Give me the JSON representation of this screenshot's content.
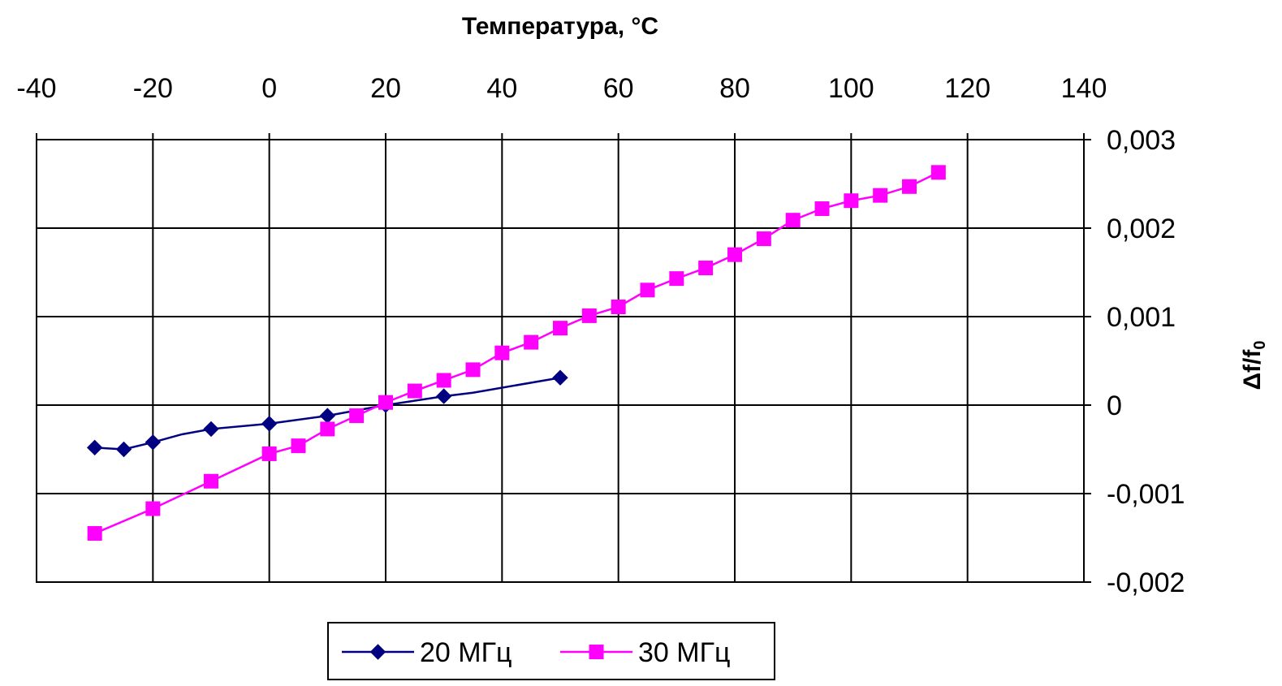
{
  "chart_data": {
    "type": "line",
    "title": "",
    "xlabel": "Температура, °С",
    "ylabel": "Δf/f",
    "ylabel_subscript": "0",
    "x_axis_position": "top",
    "y_axis_position": "right",
    "xlim": [
      -40,
      140
    ],
    "ylim": [
      -0.002,
      0.003
    ],
    "x_ticks": [
      -40,
      -20,
      0,
      20,
      40,
      60,
      80,
      100,
      120,
      140
    ],
    "x_tick_labels": [
      "-40",
      "-20",
      "0",
      "20",
      "40",
      "60",
      "80",
      "100",
      "120",
      "140"
    ],
    "y_ticks": [
      -0.002,
      -0.001,
      0,
      0.001,
      0.002,
      0.003
    ],
    "y_tick_labels": [
      "-0,002",
      "-0,001",
      "0",
      "0,001",
      "0,002",
      "0,003"
    ],
    "grid": true,
    "legend_position": "bottom",
    "series": [
      {
        "name": "20 МГц",
        "color": "#000080",
        "marker": "diamond",
        "x": [
          -30,
          -25,
          -20,
          -15,
          -10,
          0,
          10,
          20,
          30,
          35,
          50
        ],
        "y": [
          -0.00048,
          -0.0005,
          -0.00042,
          -0.00033,
          -0.00027,
          -0.00021,
          -0.00012,
          0.0,
          0.0001,
          0.00014,
          0.00031
        ],
        "marker_x": [
          -30,
          -25,
          -20,
          -10,
          0,
          10,
          20,
          30,
          50
        ],
        "marker_y": [
          -0.00048,
          -0.0005,
          -0.00042,
          -0.00027,
          -0.00021,
          -0.00012,
          0.0,
          0.0001,
          0.00031
        ]
      },
      {
        "name": "30 МГц",
        "color": "#ff00ff",
        "marker": "square",
        "x": [
          -30,
          -20,
          -10,
          0,
          5,
          10,
          15,
          20,
          25,
          30,
          35,
          40,
          45,
          50,
          55,
          60,
          65,
          70,
          75,
          80,
          85,
          90,
          95,
          100,
          105,
          110,
          115
        ],
        "y": [
          -0.00145,
          -0.00117,
          -0.00086,
          -0.00055,
          -0.00046,
          -0.00027,
          -0.00012,
          3e-05,
          0.00016,
          0.00028,
          0.0004,
          0.00059,
          0.00071,
          0.00087,
          0.00101,
          0.00111,
          0.0013,
          0.00143,
          0.00155,
          0.0017,
          0.00188,
          0.00209,
          0.00222,
          0.00231,
          0.00237,
          0.00247,
          0.00263
        ]
      }
    ]
  }
}
